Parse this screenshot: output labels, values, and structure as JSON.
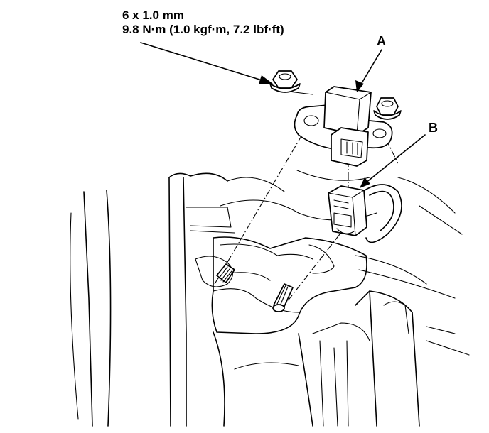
{
  "spec": {
    "bolt_size": "6 x 1.0 mm",
    "torque": "9.8 N·m (1.0 kgf·m, 7.2 lbf·ft)"
  },
  "callouts": {
    "a": "A",
    "b": "B"
  },
  "colors": {
    "ink": "#000000",
    "paper": "#ffffff"
  }
}
